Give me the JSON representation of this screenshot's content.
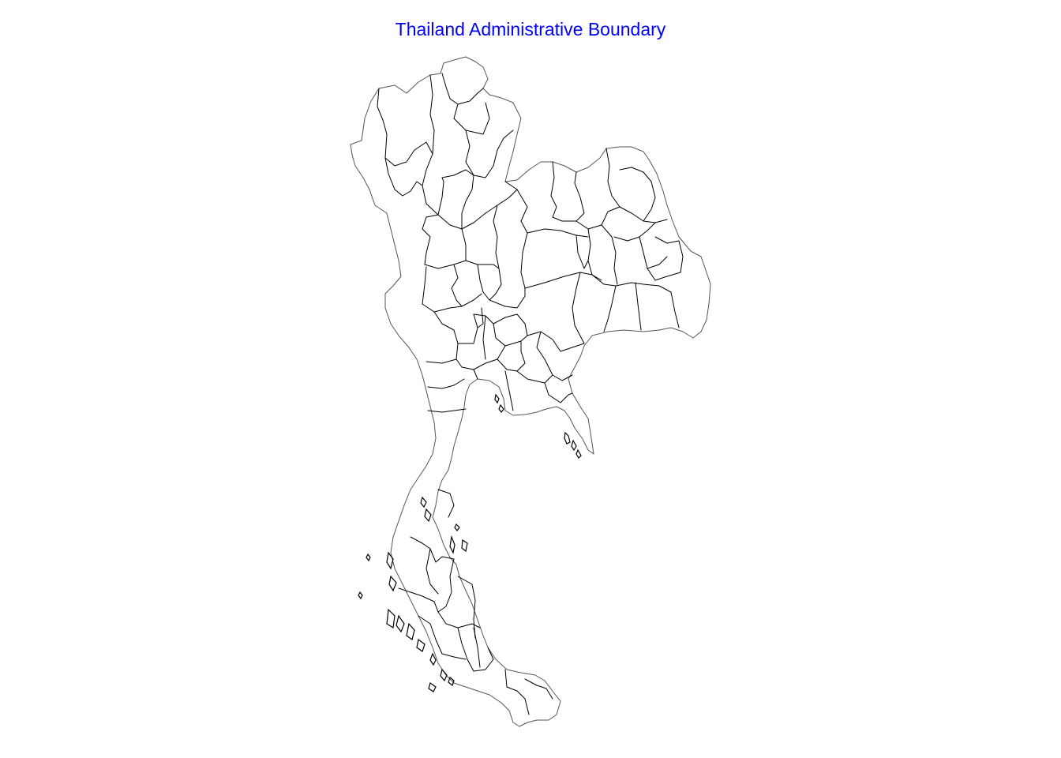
{
  "title": "Thailand Administrative Boundary",
  "colors": {
    "title": "#0000ff",
    "boundary": "#000000",
    "outline": "#555555",
    "background": "#ffffff"
  }
}
